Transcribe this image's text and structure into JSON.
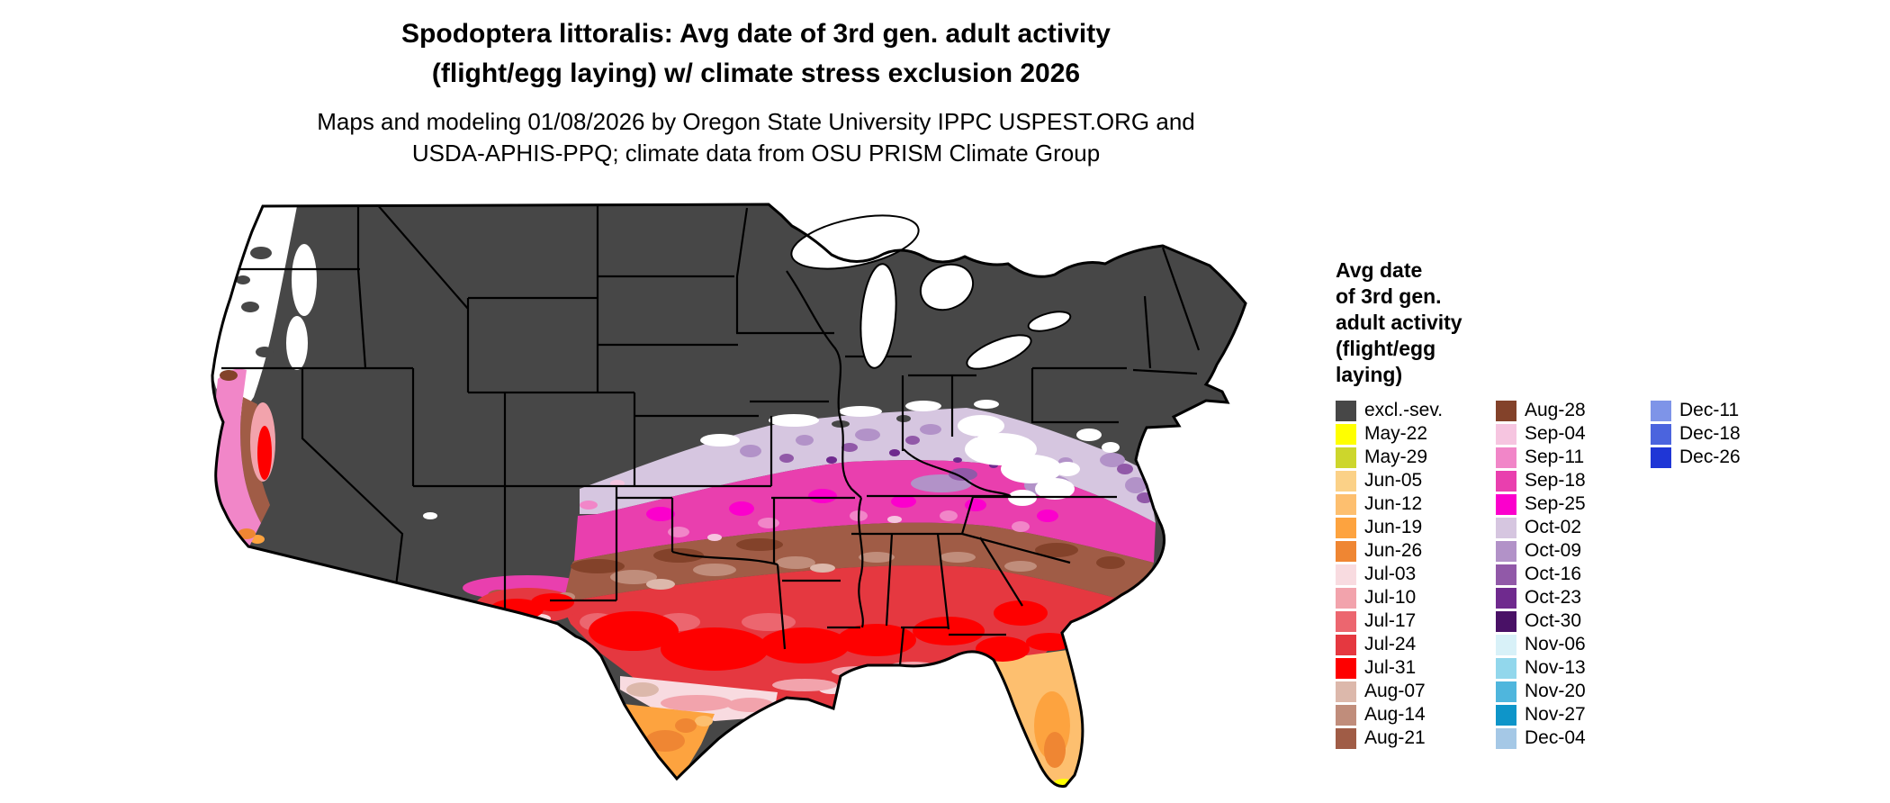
{
  "title": {
    "line1": "Spodoptera littoralis: Avg date of 3rd gen. adult activity",
    "line2": "(flight/egg laying) w/ climate stress exclusion 2026"
  },
  "subtitle": {
    "line1": "Maps and modeling 01/08/2026 by Oregon State University IPPC USPEST.ORG and",
    "line2": "USDA-APHIS-PPQ; climate data from OSU PRISM Climate Group"
  },
  "legend": {
    "title": "Avg date\nof 3rd gen.\nadult activity\n(flight/egg\nlaying)",
    "columns": [
      [
        {
          "label": "excl.-sev.",
          "key": "excl"
        },
        {
          "label": "May-22",
          "key": "may22"
        },
        {
          "label": "May-29",
          "key": "may29"
        },
        {
          "label": "Jun-05",
          "key": "jun05"
        },
        {
          "label": "Jun-12",
          "key": "jun12"
        },
        {
          "label": "Jun-19",
          "key": "jun19"
        },
        {
          "label": "Jun-26",
          "key": "jun26"
        },
        {
          "label": "Jul-03",
          "key": "jul03"
        },
        {
          "label": "Jul-10",
          "key": "jul10"
        },
        {
          "label": "Jul-17",
          "key": "jul17"
        },
        {
          "label": "Jul-24",
          "key": "jul24"
        },
        {
          "label": "Jul-31",
          "key": "jul31"
        },
        {
          "label": "Aug-07",
          "key": "aug07"
        },
        {
          "label": "Aug-14",
          "key": "aug14"
        },
        {
          "label": "Aug-21",
          "key": "aug21"
        }
      ],
      [
        {
          "label": "Aug-28",
          "key": "aug28"
        },
        {
          "label": "Sep-04",
          "key": "sep04"
        },
        {
          "label": "Sep-11",
          "key": "sep11"
        },
        {
          "label": "Sep-18",
          "key": "sep18"
        },
        {
          "label": "Sep-25",
          "key": "sep25"
        },
        {
          "label": "Oct-02",
          "key": "oct02"
        },
        {
          "label": "Oct-09",
          "key": "oct09"
        },
        {
          "label": "Oct-16",
          "key": "oct16"
        },
        {
          "label": "Oct-23",
          "key": "oct23"
        },
        {
          "label": "Oct-30",
          "key": "oct30"
        },
        {
          "label": "Nov-06",
          "key": "nov06"
        },
        {
          "label": "Nov-13",
          "key": "nov13"
        },
        {
          "label": "Nov-20",
          "key": "nov20"
        },
        {
          "label": "Nov-27",
          "key": "nov27"
        },
        {
          "label": "Dec-04",
          "key": "dec04"
        }
      ],
      [
        {
          "label": "Dec-11",
          "key": "dec11"
        },
        {
          "label": "Dec-18",
          "key": "dec18"
        },
        {
          "label": "Dec-26",
          "key": "dec26"
        }
      ]
    ]
  },
  "palette": {
    "excl": "#474747",
    "white": "#ffffff",
    "may22": "#ffff00",
    "may29": "#cdd62c",
    "jun05": "#fbd187",
    "jun12": "#fdbf6f",
    "jun19": "#fda33f",
    "jun26": "#ef8633",
    "jul03": "#f8dbe0",
    "jul10": "#f2a3ac",
    "jul17": "#ec666f",
    "jul24": "#e53840",
    "jul31": "#fe0000",
    "aug07": "#dcb8ab",
    "aug14": "#c08d7b",
    "aug21": "#a05c46",
    "aug28": "#83422a",
    "sep04": "#f6c5e0",
    "sep11": "#f186c8",
    "sep18": "#e93fae",
    "sep25": "#fb00cc",
    "oct02": "#d6c6e0",
    "oct09": "#b292c8",
    "oct16": "#9159a8",
    "oct23": "#6f2a8e",
    "oct30": "#491166",
    "nov06": "#d8f1f8",
    "nov13": "#92d7ec",
    "nov20": "#4fb6dd",
    "nov27": "#0e95c9",
    "dec04": "#a5c8e6",
    "dec11": "#7e94e8",
    "dec18": "#4b64de",
    "dec26": "#1f36d6"
  }
}
